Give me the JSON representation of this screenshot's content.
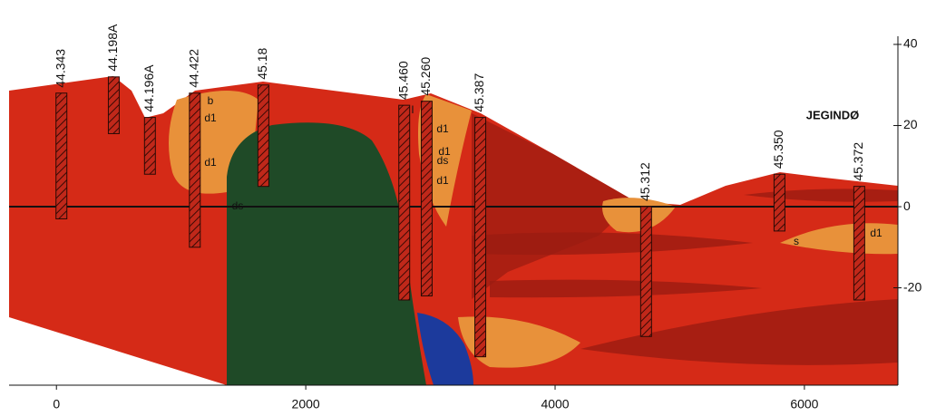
{
  "chart_data": {
    "type": "section",
    "xlim": [
      -380,
      6750
    ],
    "xticks": [
      0,
      2000,
      4000,
      6000
    ],
    "ylim": [
      -44,
      40
    ],
    "yticks": [
      40,
      20,
      0,
      -20
    ],
    "zero_line": true,
    "site": "JEGINDØ",
    "boreholes": [
      {
        "label": "44.343",
        "x": 40,
        "top": 28,
        "bottom": -3
      },
      {
        "label": "44.198A",
        "x": 460,
        "top": 32,
        "bottom": 18
      },
      {
        "label": "44.196A",
        "x": 750,
        "top": 22,
        "bottom": 8
      },
      {
        "label": "44.422",
        "x": 1110,
        "top": 28,
        "bottom": -10
      },
      {
        "label": "45.18",
        "x": 1660,
        "top": 30,
        "bottom": 5
      },
      {
        "label": "45.460",
        "x": 2790,
        "top": 25,
        "bottom": -23
      },
      {
        "label": "45.260",
        "x": 2970,
        "top": 26,
        "bottom": -22
      },
      {
        "label": "45.387",
        "x": 3400,
        "top": 22,
        "bottom": -37
      },
      {
        "label": "45.312",
        "x": 4730,
        "top": 0,
        "bottom": -32
      },
      {
        "label": "45.350",
        "x": 5800,
        "top": 8,
        "bottom": -6
      },
      {
        "label": "45.372",
        "x": 6440,
        "top": 5,
        "bottom": -23
      }
    ],
    "layer_labels": [
      "b",
      "d1",
      "d1",
      "ds",
      "d1",
      "d1",
      "ds",
      "d1",
      "s",
      "d1",
      "l"
    ]
  }
}
